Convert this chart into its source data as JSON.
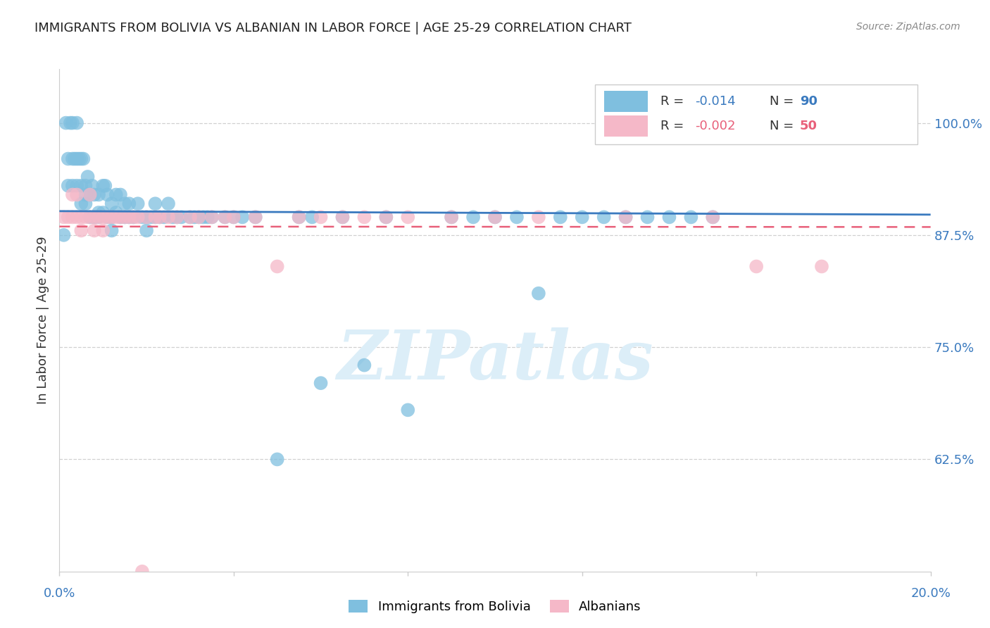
{
  "title": "IMMIGRANTS FROM BOLIVIA VS ALBANIAN IN LABOR FORCE | AGE 25-29 CORRELATION CHART",
  "source": "Source: ZipAtlas.com",
  "ylabel": "In Labor Force | Age 25-29",
  "yticks": [
    0.625,
    0.75,
    0.875,
    1.0
  ],
  "ytick_labels": [
    "62.5%",
    "75.0%",
    "87.5%",
    "100.0%"
  ],
  "xlim": [
    0.0,
    0.2
  ],
  "ylim": [
    0.5,
    1.06
  ],
  "bolivia_R": -0.014,
  "bolivia_N": 90,
  "albanian_R": -0.002,
  "albanian_N": 50,
  "bolivia_color": "#7fbfdf",
  "albanian_color": "#f5b8c8",
  "bolivia_color_line": "#3a7abf",
  "albanian_color_line": "#e8607a",
  "bolivia_x": [
    0.001,
    0.0015,
    0.002,
    0.002,
    0.0025,
    0.003,
    0.003,
    0.003,
    0.0035,
    0.004,
    0.004,
    0.004,
    0.0045,
    0.005,
    0.005,
    0.005,
    0.0055,
    0.006,
    0.006,
    0.006,
    0.0065,
    0.007,
    0.007,
    0.0075,
    0.008,
    0.008,
    0.009,
    0.009,
    0.009,
    0.01,
    0.01,
    0.0105,
    0.011,
    0.011,
    0.012,
    0.012,
    0.012,
    0.013,
    0.013,
    0.014,
    0.014,
    0.015,
    0.015,
    0.016,
    0.016,
    0.017,
    0.018,
    0.019,
    0.02,
    0.02,
    0.021,
    0.022,
    0.022,
    0.023,
    0.024,
    0.025,
    0.026,
    0.027,
    0.028,
    0.03,
    0.031,
    0.032,
    0.033,
    0.034,
    0.035,
    0.038,
    0.04,
    0.042,
    0.045,
    0.05,
    0.055,
    0.058,
    0.06,
    0.065,
    0.07,
    0.075,
    0.08,
    0.09,
    0.095,
    0.1,
    0.105,
    0.11,
    0.115,
    0.12,
    0.125,
    0.13,
    0.135,
    0.14,
    0.145,
    0.15
  ],
  "bolivia_y": [
    0.875,
    1.0,
    0.96,
    0.93,
    1.0,
    1.0,
    0.96,
    0.93,
    0.96,
    1.0,
    0.96,
    0.93,
    0.96,
    0.96,
    0.93,
    0.91,
    0.96,
    0.93,
    0.92,
    0.91,
    0.94,
    0.92,
    0.895,
    0.93,
    0.92,
    0.895,
    0.92,
    0.9,
    0.895,
    0.93,
    0.9,
    0.93,
    0.92,
    0.895,
    0.91,
    0.895,
    0.88,
    0.92,
    0.9,
    0.92,
    0.895,
    0.91,
    0.895,
    0.91,
    0.895,
    0.895,
    0.91,
    0.895,
    0.895,
    0.88,
    0.895,
    0.91,
    0.895,
    0.895,
    0.895,
    0.91,
    0.895,
    0.895,
    0.895,
    0.895,
    0.895,
    0.895,
    0.895,
    0.895,
    0.895,
    0.895,
    0.895,
    0.895,
    0.895,
    0.625,
    0.895,
    0.895,
    0.71,
    0.895,
    0.73,
    0.895,
    0.68,
    0.895,
    0.895,
    0.895,
    0.895,
    0.81,
    0.895,
    0.895,
    0.895,
    0.895,
    0.895,
    0.895,
    0.895,
    0.895
  ],
  "albanian_x": [
    0.001,
    0.002,
    0.003,
    0.003,
    0.004,
    0.004,
    0.005,
    0.005,
    0.006,
    0.007,
    0.007,
    0.008,
    0.008,
    0.009,
    0.01,
    0.01,
    0.011,
    0.012,
    0.013,
    0.014,
    0.015,
    0.016,
    0.017,
    0.018,
    0.019,
    0.02,
    0.022,
    0.023,
    0.025,
    0.027,
    0.03,
    0.032,
    0.035,
    0.038,
    0.04,
    0.045,
    0.05,
    0.055,
    0.06,
    0.065,
    0.07,
    0.075,
    0.08,
    0.09,
    0.1,
    0.11,
    0.13,
    0.15,
    0.16,
    0.175
  ],
  "albanian_y": [
    0.895,
    0.895,
    0.92,
    0.895,
    0.92,
    0.895,
    0.895,
    0.88,
    0.895,
    0.92,
    0.895,
    0.895,
    0.88,
    0.895,
    0.895,
    0.88,
    0.895,
    0.895,
    0.895,
    0.895,
    0.895,
    0.895,
    0.895,
    0.895,
    0.5,
    0.895,
    0.895,
    0.895,
    0.895,
    0.895,
    0.895,
    0.895,
    0.895,
    0.895,
    0.895,
    0.895,
    0.84,
    0.895,
    0.895,
    0.895,
    0.895,
    0.895,
    0.895,
    0.895,
    0.895,
    0.895,
    0.895,
    0.895,
    0.84,
    0.84
  ],
  "background_color": "#ffffff",
  "grid_color": "#d0d0d0",
  "title_color": "#222222",
  "axis_label_color": "#3a7abf",
  "watermark_color": "#dceef8"
}
